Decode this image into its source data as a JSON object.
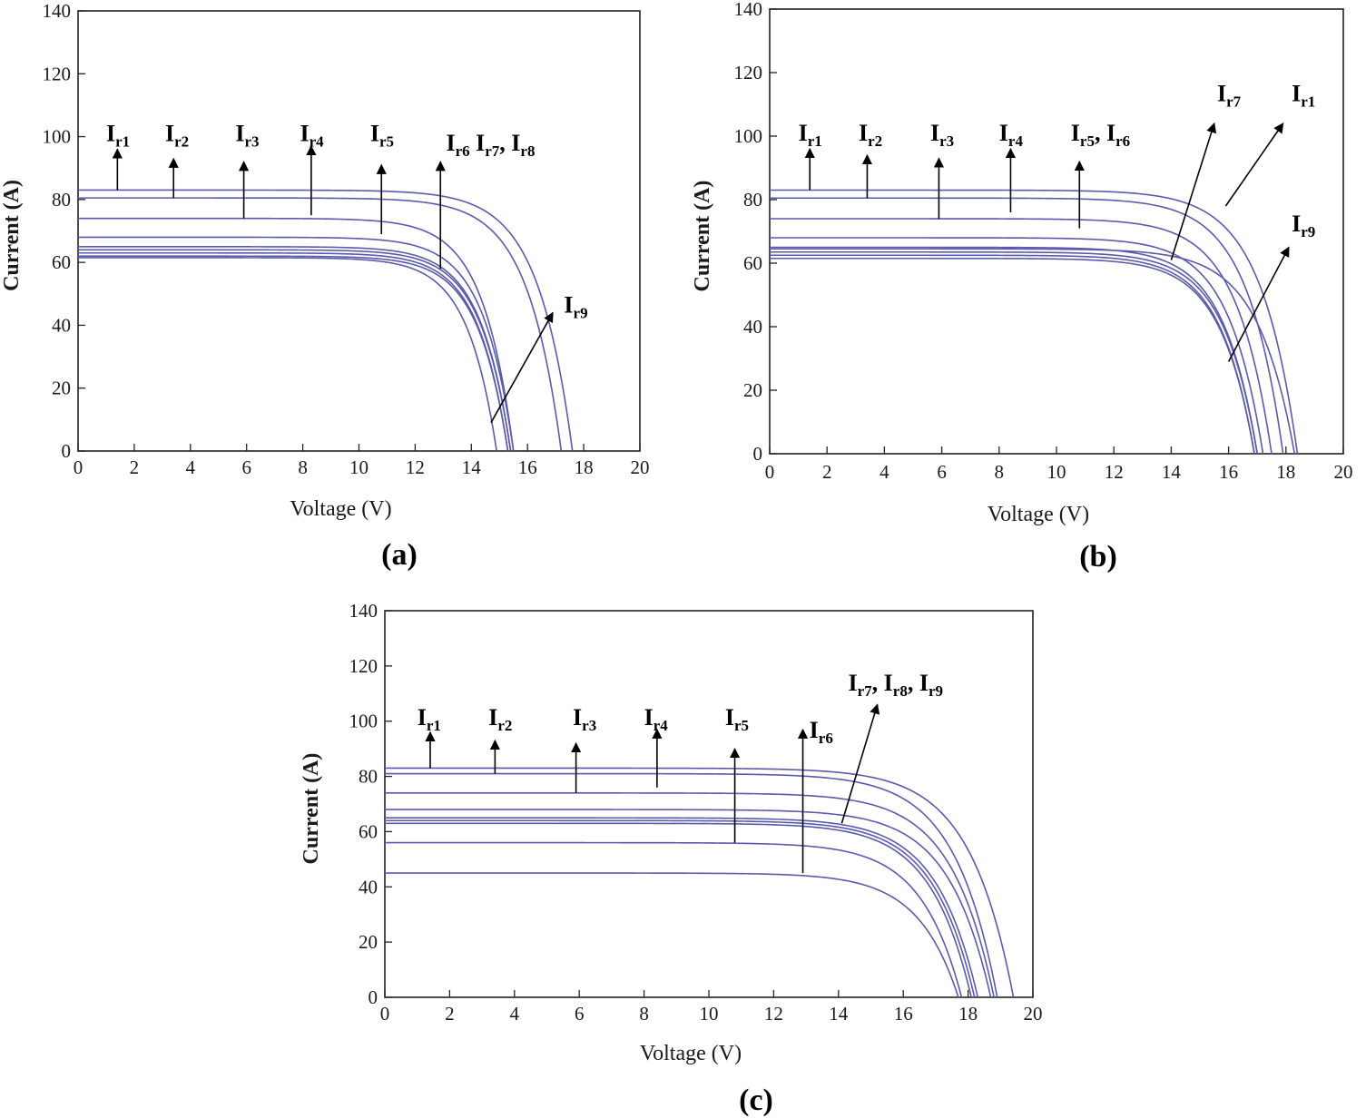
{
  "chart_data": [
    {
      "id": "a",
      "type": "line",
      "panel_label": "(a)",
      "xlabel": "Voltage (V)",
      "ylabel": "Current (A)",
      "xlim": [
        0,
        20
      ],
      "ylim": [
        0,
        140
      ],
      "xticks": [
        "0",
        "2",
        "4",
        "6",
        "8",
        "10",
        "12",
        "14",
        "16",
        "18",
        "20"
      ],
      "yticks": [
        "0",
        "20",
        "40",
        "60",
        "80",
        "100",
        "120",
        "140"
      ],
      "grid": false,
      "series": [
        {
          "isc": 83,
          "voc": 17.6
        },
        {
          "isc": 80.5,
          "voc": 17.2
        },
        {
          "isc": 74,
          "voc": 15.5
        },
        {
          "isc": 68,
          "voc": 15.5
        },
        {
          "isc": 65,
          "voc": 15.4
        },
        {
          "isc": 64,
          "voc": 15.4
        },
        {
          "isc": 63,
          "voc": 15.3
        },
        {
          "isc": 62,
          "voc": 15.3
        },
        {
          "isc": 61.5,
          "voc": 14.9
        }
      ],
      "annotations": [
        {
          "main": "I",
          "sub": "r1",
          "suffix": "",
          "tx": 1.0,
          "ty": 98,
          "ax": 1.4,
          "ay1": 83,
          "ay2": 96
        },
        {
          "main": "I",
          "sub": "r2",
          "suffix": "",
          "tx": 3.1,
          "ty": 98,
          "ax": 3.4,
          "ay1": 80.5,
          "ay2": 93
        },
        {
          "main": "I",
          "sub": "r3",
          "suffix": "",
          "tx": 5.6,
          "ty": 98,
          "ax": 5.9,
          "ay1": 74,
          "ay2": 92
        },
        {
          "main": "I",
          "sub": "r4",
          "suffix": "",
          "tx": 7.9,
          "ty": 98,
          "ax": 8.3,
          "ay1": 75,
          "ay2": 97
        },
        {
          "main": "I",
          "sub": "r5",
          "suffix": "",
          "tx": 10.4,
          "ty": 98,
          "ax": 10.8,
          "ay1": 69,
          "ay2": 91
        },
        {
          "main": "I",
          "sub": "r6",
          "suffix": " Ir7, Ir8",
          "tx": 13.1,
          "ty": 95,
          "ax": 12.9,
          "ay1": 58,
          "ay2": 92
        }
      ],
      "annotation_text": [
        "Ir1",
        "Ir2",
        "Ir3",
        "Ir4",
        "Ir5",
        "Ir6 Ir7, Ir8",
        "Ir9"
      ],
      "diag_arrows": [
        {
          "main": "I",
          "sub": "r9",
          "tx": 17.3,
          "ty": 44,
          "x1": 14.7,
          "y1": 9,
          "x2": 16.9,
          "y2": 44
        }
      ]
    },
    {
      "id": "b",
      "type": "line",
      "panel_label": "(b)",
      "xlabel": "Voltage (V)",
      "ylabel": "Current (A)",
      "xlim": [
        0,
        20
      ],
      "ylim": [
        0,
        140
      ],
      "xticks": [
        "0",
        "2",
        "4",
        "6",
        "8",
        "10",
        "12",
        "14",
        "16",
        "18",
        "20"
      ],
      "yticks": [
        "0",
        "20",
        "40",
        "60",
        "80",
        "100",
        "120",
        "140"
      ],
      "grid": false,
      "series": [
        {
          "isc": 83,
          "voc": 18.4
        },
        {
          "isc": 80.5,
          "voc": 17.9
        },
        {
          "isc": 74,
          "voc": 17.5
        },
        {
          "isc": 68,
          "voc": 17.2
        },
        {
          "isc": 65,
          "voc": 17.0
        },
        {
          "isc": 64.5,
          "voc": 18.3
        },
        {
          "isc": 63.5,
          "voc": 17.0
        },
        {
          "isc": 62.5,
          "voc": 16.9
        },
        {
          "isc": 61.5,
          "voc": 16.9
        }
      ],
      "annotations": [
        {
          "main": "I",
          "sub": "r1",
          "suffix": "",
          "tx": 1.0,
          "ty": 98,
          "ax": 1.4,
          "ay1": 83,
          "ay2": 96
        },
        {
          "main": "I",
          "sub": "r2",
          "suffix": "",
          "tx": 3.1,
          "ty": 98,
          "ax": 3.4,
          "ay1": 80.5,
          "ay2": 94
        },
        {
          "main": "I",
          "sub": "r3",
          "suffix": "",
          "tx": 5.6,
          "ty": 98,
          "ax": 5.9,
          "ay1": 74,
          "ay2": 93
        },
        {
          "main": "I",
          "sub": "r4",
          "suffix": "",
          "tx": 8.0,
          "ty": 98,
          "ax": 8.4,
          "ay1": 76,
          "ay2": 96
        },
        {
          "main": "I",
          "sub": "r5",
          "suffix": ", Ir6",
          "tx": 10.5,
          "ty": 98,
          "ax": 10.8,
          "ay1": 71,
          "ay2": 92
        }
      ],
      "annotation_text": [
        "Ir1",
        "Ir2",
        "Ir3",
        "Ir4",
        "Ir5, Ir6",
        "Ir7",
        "Ir1",
        "Ir9"
      ],
      "diag_arrows": [
        {
          "main": "I",
          "sub": "r7",
          "tx": 15.6,
          "ty": 111,
          "x1": 14.0,
          "y1": 61,
          "x2": 15.5,
          "y2": 104
        },
        {
          "main": "I",
          "sub": "r1",
          "tx": 18.2,
          "ty": 111,
          "x1": 15.9,
          "y1": 78,
          "x2": 17.9,
          "y2": 104
        },
        {
          "main": "I",
          "sub": "r9",
          "tx": 18.2,
          "ty": 70,
          "x1": 16.0,
          "y1": 29,
          "x2": 18.1,
          "y2": 65
        }
      ]
    },
    {
      "id": "c",
      "type": "line",
      "panel_label": "(c)",
      "xlabel": "Voltage (V)",
      "ylabel": "Current (A)",
      "xlim": [
        0,
        20
      ],
      "ylim": [
        0,
        140
      ],
      "xticks": [
        "0",
        "2",
        "4",
        "6",
        "8",
        "10",
        "12",
        "14",
        "16",
        "18",
        "20"
      ],
      "yticks": [
        "0",
        "20",
        "40",
        "60",
        "80",
        "100",
        "120",
        "140"
      ],
      "grid": false,
      "series": [
        {
          "isc": 83,
          "voc": 19.4
        },
        {
          "isc": 81,
          "voc": 18.9
        },
        {
          "isc": 74,
          "voc": 18.8
        },
        {
          "isc": 68,
          "voc": 18.7
        },
        {
          "isc": 65,
          "voc": 18.3
        },
        {
          "isc": 64,
          "voc": 18.2
        },
        {
          "isc": 63,
          "voc": 18.1
        },
        {
          "isc": 56,
          "voc": 17.8
        },
        {
          "isc": 45,
          "voc": 17.7
        }
      ],
      "annotations": [
        {
          "main": "I",
          "sub": "r1",
          "suffix": "",
          "tx": 1.0,
          "ty": 98,
          "ax": 1.4,
          "ay1": 83,
          "ay2": 96
        },
        {
          "main": "I",
          "sub": "r2",
          "suffix": "",
          "tx": 3.2,
          "ty": 98,
          "ax": 3.4,
          "ay1": 81,
          "ay2": 93
        },
        {
          "main": "I",
          "sub": "r3",
          "suffix": "",
          "tx": 5.8,
          "ty": 98,
          "ax": 5.9,
          "ay1": 74,
          "ay2": 92
        },
        {
          "main": "I",
          "sub": "r4",
          "suffix": "",
          "tx": 8.0,
          "ty": 98,
          "ax": 8.4,
          "ay1": 76,
          "ay2": 97
        },
        {
          "main": "I",
          "sub": "r5",
          "suffix": "",
          "tx": 10.5,
          "ty": 98,
          "ax": 10.8,
          "ay1": 56,
          "ay2": 90
        }
      ],
      "side_annotation": {
        "main": "I",
        "sub": "r6",
        "tx": 13.1,
        "ty": 94,
        "ax": 12.9,
        "ay1": 45,
        "ay2": 97
      },
      "annotation_text": [
        "Ir1",
        "Ir2",
        "Ir3",
        "Ir4",
        "Ir5",
        "Ir6",
        "Ir7, Ir8, Ir9"
      ],
      "diag_arrows": [
        {
          "main": "I",
          "sub": "r7",
          "suffix": ", Ir8, Ir9",
          "tx": 14.3,
          "ty": 111,
          "x1": 14.1,
          "y1": 63,
          "x2": 15.2,
          "y2": 106
        }
      ]
    }
  ]
}
